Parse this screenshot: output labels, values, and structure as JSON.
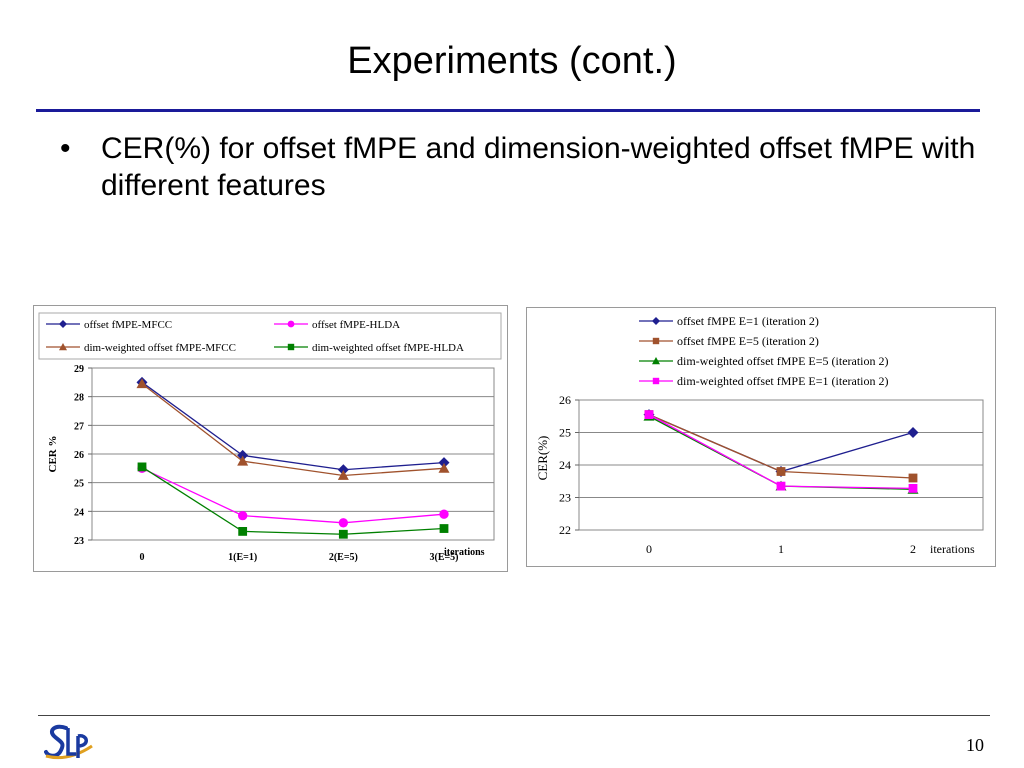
{
  "slide": {
    "title": "Experiments (cont.)",
    "bullet_marker": "•",
    "bullet_text": "CER(%) for offset fMPE and dimension-weighted offset fMPE with different features",
    "page_number": "10",
    "logo_text": "SLP"
  },
  "colors": {
    "title_rule": "#1a1a99",
    "navy": "#1f1f8f",
    "brown": "#a0522d",
    "magenta": "#ff00ff",
    "green": "#008000"
  },
  "chart_data": [
    {
      "type": "line",
      "title": "",
      "xlabel": "iterations",
      "ylabel": "CER %",
      "categories": [
        "0",
        "1(E=1)",
        "2(E=5)",
        "3(E=5)"
      ],
      "ylim": [
        23,
        29
      ],
      "yticks": [
        23,
        24,
        25,
        26,
        27,
        28,
        29
      ],
      "grid": true,
      "legend_position": "top",
      "series": [
        {
          "name": "offset fMPE-MFCC",
          "values": [
            28.5,
            25.95,
            25.45,
            25.7
          ],
          "color": "#1f1f8f",
          "marker": "diamond"
        },
        {
          "name": "offset fMPE-HLDA",
          "values": [
            25.5,
            23.85,
            23.6,
            23.9
          ],
          "color": "#ff00ff",
          "marker": "circle"
        },
        {
          "name": "dim-weighted offset fMPE-MFCC",
          "values": [
            28.45,
            25.75,
            25.25,
            25.5
          ],
          "color": "#a0522d",
          "marker": "triangle"
        },
        {
          "name": "dim-weighted offset fMPE-HLDA",
          "values": [
            25.55,
            23.3,
            23.2,
            23.4
          ],
          "color": "#008000",
          "marker": "square"
        }
      ]
    },
    {
      "type": "line",
      "title": "",
      "xlabel": "iterations",
      "ylabel": "CER(%)",
      "categories": [
        "0",
        "1",
        "2"
      ],
      "ylim": [
        22,
        26
      ],
      "yticks": [
        22,
        23,
        24,
        25,
        26
      ],
      "grid": true,
      "legend_position": "top",
      "series": [
        {
          "name": "offset fMPE E=1 (iteration 2)",
          "values": [
            25.55,
            23.8,
            25.0
          ],
          "color": "#1f1f8f",
          "marker": "diamond"
        },
        {
          "name": "offset fMPE E=5 (iteration 2)",
          "values": [
            25.55,
            23.8,
            23.6
          ],
          "color": "#a0522d",
          "marker": "square"
        },
        {
          "name": "dim-weighted offset fMPE E=5 (iteration 2)",
          "values": [
            25.5,
            23.35,
            23.25
          ],
          "color": "#008000",
          "marker": "triangle"
        },
        {
          "name": "dim-weighted offset fMPE E=1 (iteration 2)",
          "values": [
            25.55,
            23.35,
            23.28
          ],
          "color": "#ff00ff",
          "marker": "square"
        }
      ]
    }
  ]
}
